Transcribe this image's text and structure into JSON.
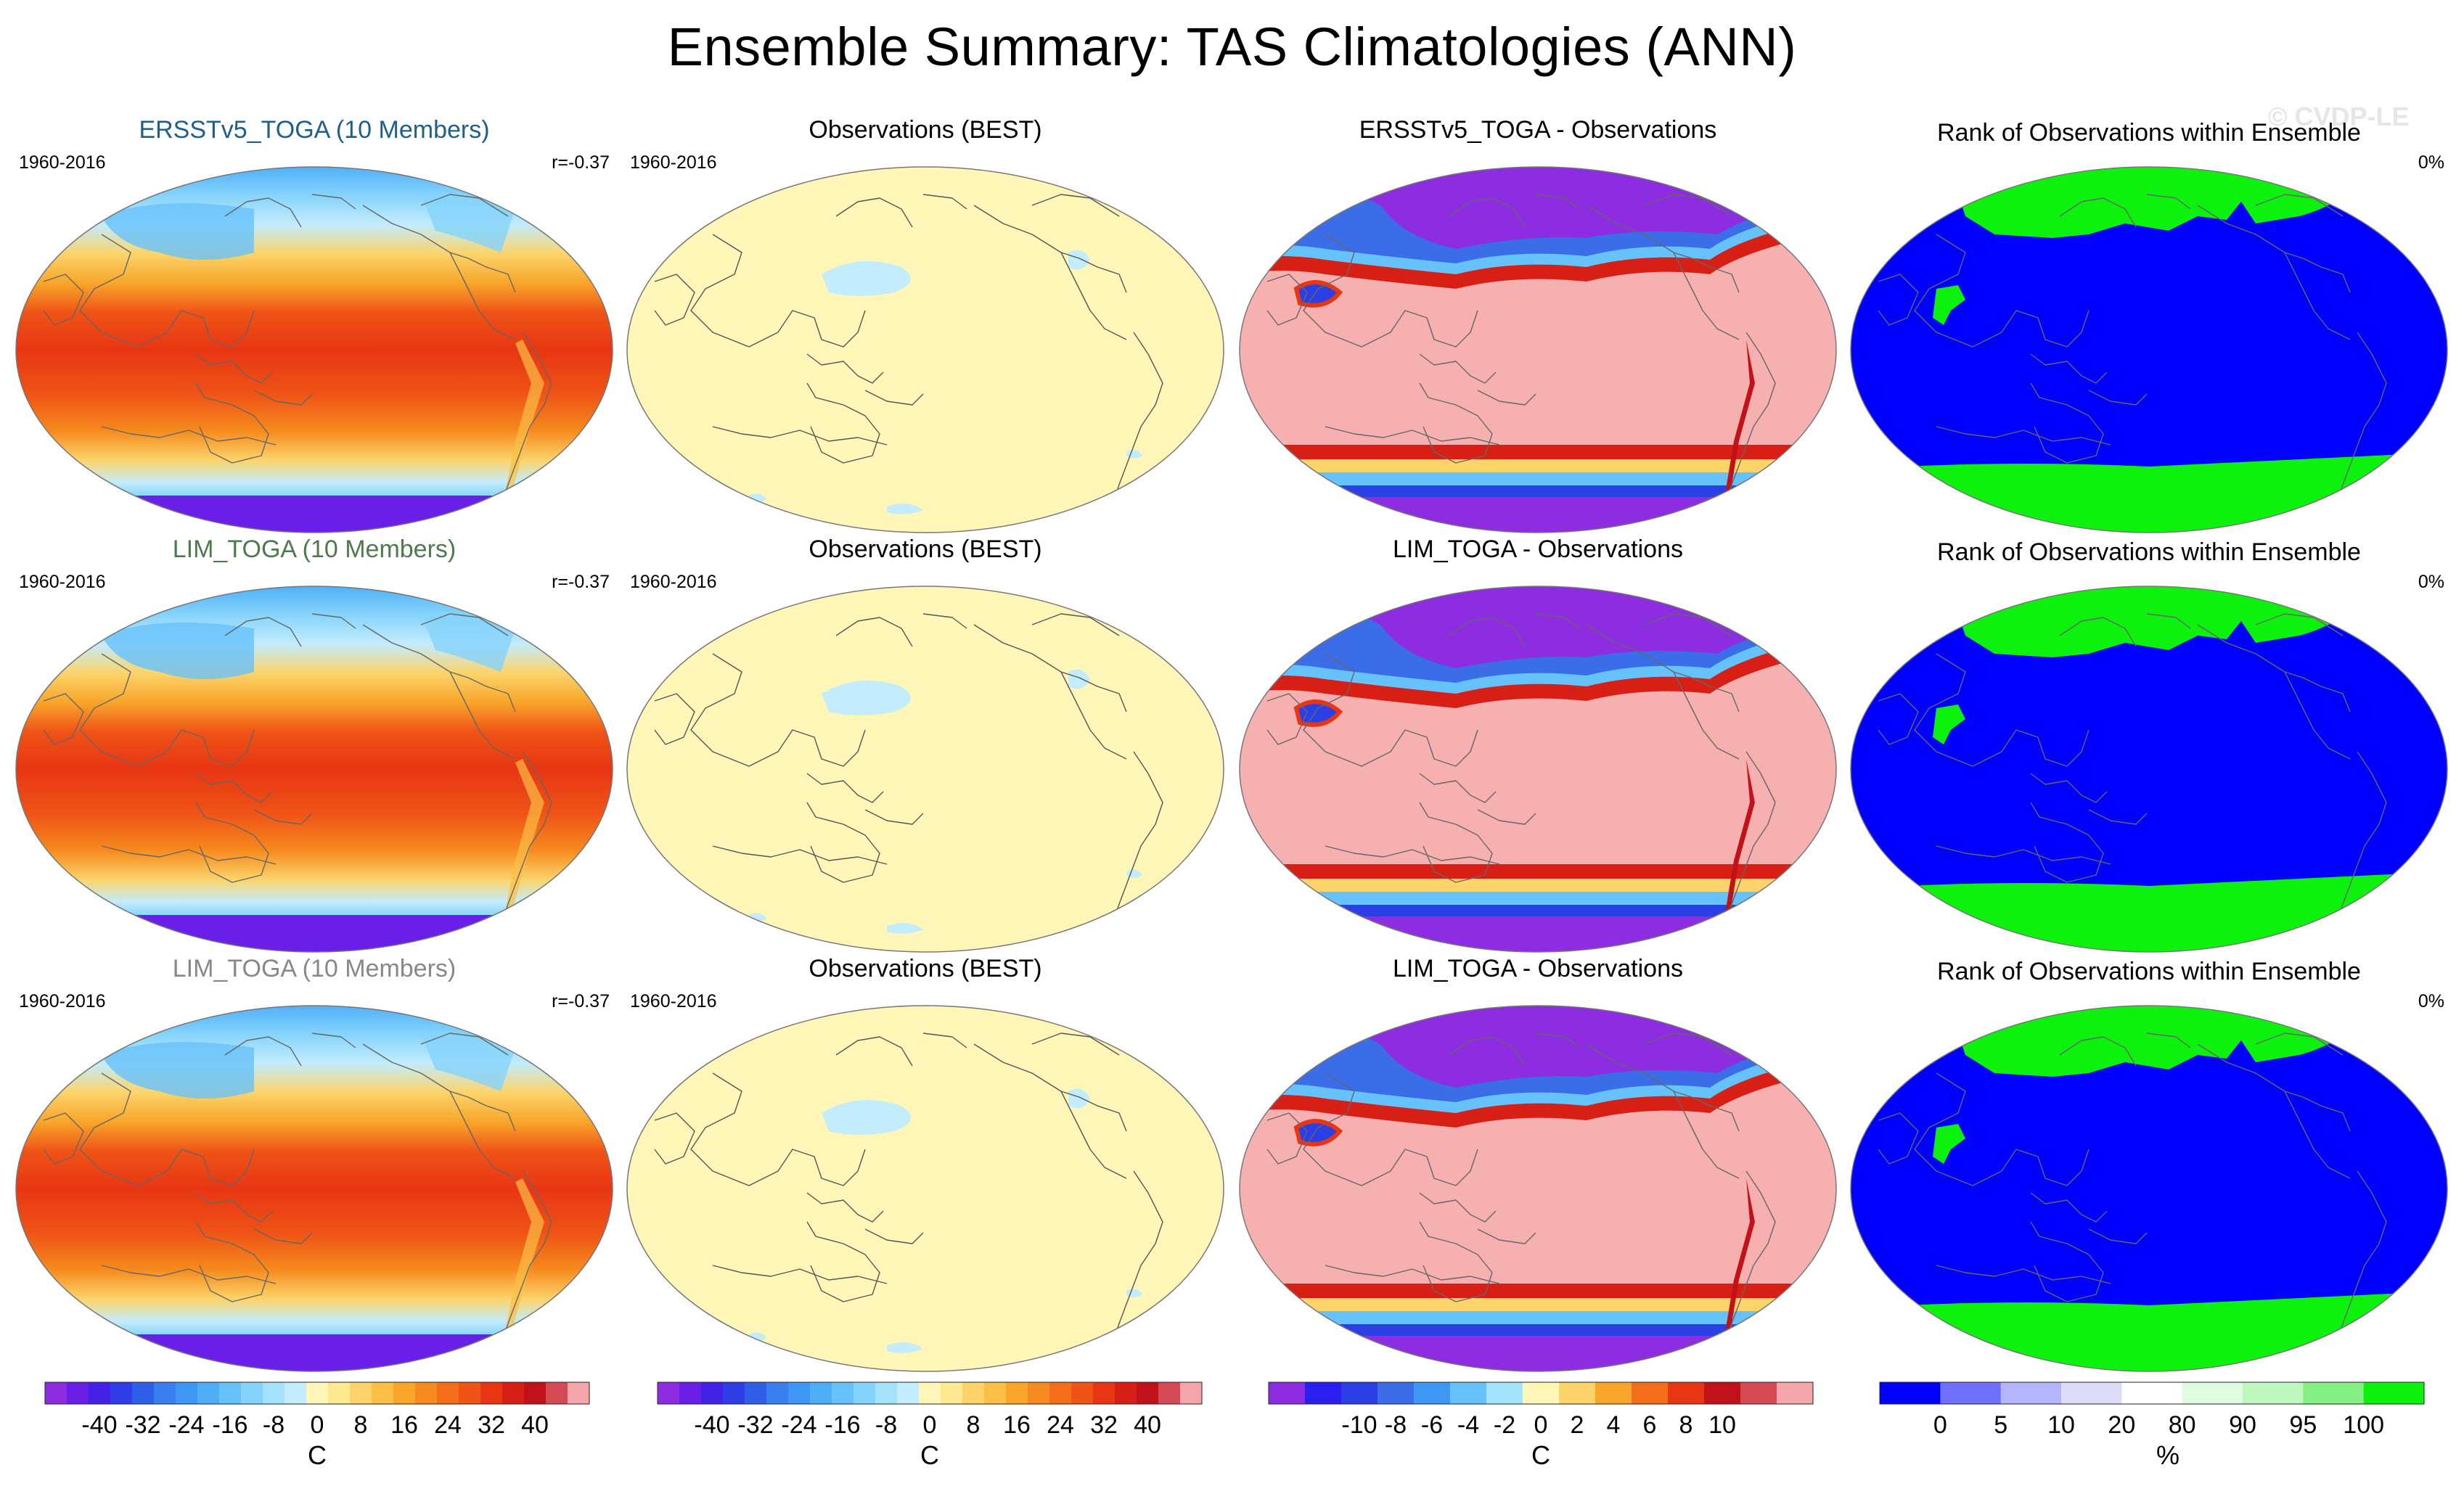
{
  "title": "Ensemble Summary: TAS Climatologies (ANN)",
  "watermark": "© CVDP-LE",
  "rows": [
    {
      "model_title": "ERSSTv5_TOGA (10 Members)",
      "model_title_color": "#1f5f8b",
      "years": "1960-2016",
      "pattern_corr": "r=-0.37",
      "obs_title": "Observations (BEST)",
      "obs_years": "1960-2016",
      "diff_title": "ERSSTv5_TOGA - Observations",
      "rank_title": "Rank of Observations within Ensemble",
      "rank_pct": "0%"
    },
    {
      "model_title": "LIM_TOGA (10 Members)",
      "model_title_color": "#4e7a4e",
      "years": "1960-2016",
      "pattern_corr": "r=-0.37",
      "obs_title": "Observations (BEST)",
      "obs_years": "1960-2016",
      "diff_title": "LIM_TOGA - Observations",
      "rank_title": "Rank of Observations within Ensemble",
      "rank_pct": "0%"
    },
    {
      "model_title": "LIM_TOGA (10 Members)",
      "model_title_color": "#888888",
      "years": "1960-2016",
      "pattern_corr": "r=-0.37",
      "obs_title": "Observations (BEST)",
      "obs_years": "1960-2016",
      "diff_title": "LIM_TOGA - Observations",
      "rank_title": "Rank of Observations within Ensemble",
      "rank_pct": "0%"
    }
  ],
  "colorbars": [
    {
      "colors": [
        "#8d2ce0",
        "#6a1fe8",
        "#4321e6",
        "#2e3de8",
        "#2f5fe8",
        "#3a7ff0",
        "#3f97f5",
        "#4eaef8",
        "#66c2fb",
        "#84d3fb",
        "#a4e1fc",
        "#c3ecfd",
        "#fff6b8",
        "#fde98f",
        "#fcd46a",
        "#fbbf46",
        "#f8a52a",
        "#f68a1e",
        "#f36f19",
        "#ef5316",
        "#e83614",
        "#d71f16",
        "#c1121a",
        "#d34a55",
        "#f4a5a9"
      ],
      "labels": [
        "-40",
        "-32",
        "-24",
        "-16",
        "-8",
        "0",
        "8",
        "16",
        "24",
        "32",
        "40"
      ],
      "label_bounds": [
        -40,
        40
      ],
      "unit": "C"
    },
    {
      "colors": [
        "#8d2ce0",
        "#6a1fe8",
        "#4321e6",
        "#2e3de8",
        "#2f5fe8",
        "#3a7ff0",
        "#3f97f5",
        "#4eaef8",
        "#66c2fb",
        "#84d3fb",
        "#a4e1fc",
        "#c3ecfd",
        "#fff6b8",
        "#fde98f",
        "#fcd46a",
        "#fbbf46",
        "#f8a52a",
        "#f68a1e",
        "#f36f19",
        "#ef5316",
        "#e83614",
        "#d71f16",
        "#c1121a",
        "#d34a55",
        "#f4a5a9"
      ],
      "labels": [
        "-40",
        "-32",
        "-24",
        "-16",
        "-8",
        "0",
        "8",
        "16",
        "24",
        "32",
        "40"
      ],
      "label_bounds": [
        -40,
        40
      ],
      "unit": "C"
    },
    {
      "colors": [
        "#8d2ce0",
        "#2a1ff0",
        "#2a3fe6",
        "#3b6de8",
        "#3f97f5",
        "#66c2fb",
        "#a4e1fc",
        "#fff6b8",
        "#fcd46a",
        "#f8a52a",
        "#f36f19",
        "#e83614",
        "#c1121a",
        "#d34a55",
        "#f4a5a9"
      ],
      "labels": [
        "-10",
        "-8",
        "-6",
        "-4",
        "-2",
        "0",
        "2",
        "4",
        "6",
        "8",
        "10"
      ],
      "label_bounds": [
        -10,
        10
      ],
      "unit": "C"
    },
    {
      "colors": [
        "#0000ff",
        "#7070ff",
        "#b4b4ff",
        "#dcdcfa",
        "#ffffff",
        "#e0fce0",
        "#bff8bf",
        "#84f084",
        "#0cf20c"
      ],
      "boundaries": [
        0,
        5,
        10,
        20,
        80,
        90,
        95,
        100
      ],
      "labels": [
        "0",
        "5",
        "10",
        "20",
        "80",
        "90",
        "95",
        "100"
      ],
      "unit": "%"
    }
  ]
}
